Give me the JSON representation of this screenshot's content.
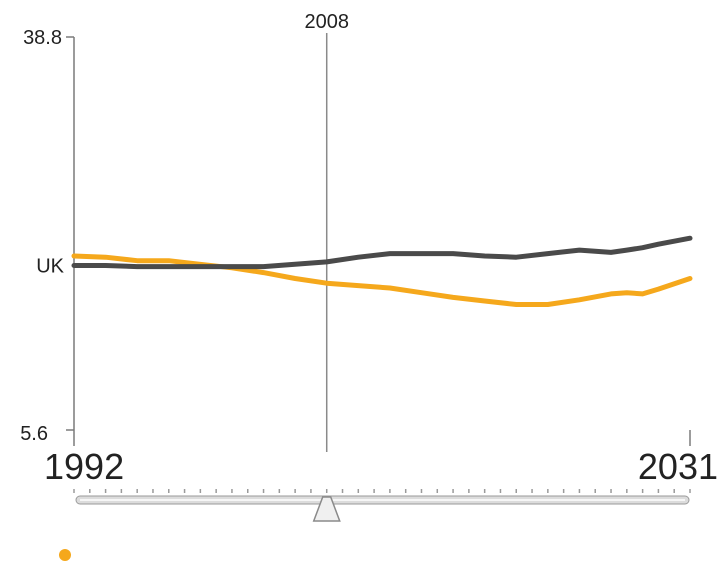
{
  "chart_data": {
    "type": "line",
    "x": [
      1992,
      1994,
      1996,
      1998,
      2000,
      2002,
      2004,
      2006,
      2008,
      2010,
      2012,
      2014,
      2016,
      2018,
      2020,
      2022,
      2024,
      2026,
      2027,
      2028,
      2029,
      2031
    ],
    "series": [
      {
        "color": "#f5a81c",
        "values": [
          20.3,
          20.2,
          19.9,
          19.9,
          19.6,
          19.3,
          18.9,
          18.4,
          18.0,
          17.8,
          17.6,
          17.2,
          16.8,
          16.5,
          16.2,
          16.2,
          16.6,
          17.1,
          17.2,
          17.1,
          17.5,
          18.4
        ]
      },
      {
        "color": "#4a4a4a",
        "values": [
          19.5,
          19.5,
          19.4,
          19.4,
          19.4,
          19.4,
          19.4,
          19.6,
          19.8,
          20.2,
          20.5,
          20.5,
          20.5,
          20.3,
          20.2,
          20.5,
          20.8,
          20.6,
          20.8,
          21.0,
          21.3,
          21.8
        ]
      }
    ],
    "ylim": [
      5.6,
      38.8
    ],
    "xlim": [
      1992,
      2031
    ],
    "y_ticks": [
      "38.8",
      "5.6"
    ],
    "reference_label": "UK",
    "reference_value": 19.5,
    "marker_year": 2008,
    "marker_label": "2008",
    "range_start_label": "1992",
    "range_end_label": "2031",
    "grid": false,
    "legend": "bottom-left"
  },
  "colors": {
    "axis": "#7a7a7a",
    "text": "#222222",
    "slider_track": "#dcdcdc",
    "slider_handle": "#f0f0f0",
    "legend_dot": "#f5a81c"
  },
  "icons": {
    "slider_handle": "triangle-handle-icon",
    "legend": "legend-dot-icon"
  }
}
